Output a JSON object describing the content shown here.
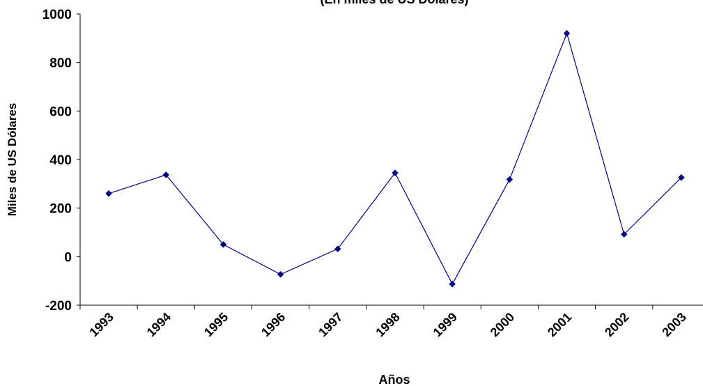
{
  "chart_data": {
    "type": "line",
    "title": "(En miles de US Dólares)",
    "xlabel": "Años",
    "ylabel": "Miles de US Dólares",
    "categories": [
      "1993",
      "1994",
      "1995",
      "1996",
      "1997",
      "1998",
      "1999",
      "2000",
      "2001",
      "2002",
      "2003"
    ],
    "series": [
      {
        "values": [
          260,
          337,
          50,
          -73,
          32,
          345,
          -113,
          318,
          920,
          92,
          326
        ]
      }
    ],
    "ylim": [
      -200,
      1000
    ],
    "yticks": [
      -200,
      0,
      200,
      400,
      600,
      800,
      1000
    ],
    "grid": false,
    "legend": "none",
    "line_color": "#000080",
    "marker": "diamond"
  }
}
